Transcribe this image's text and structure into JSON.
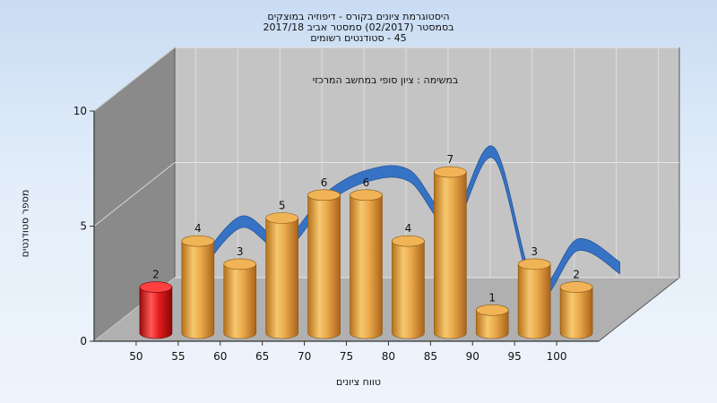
{
  "title_lines": [
    "היסטוגרמת ציונים בקורס - דיפוזיה במוצקים",
    "בסמסטר  (02/2017)  סמסטר אביב 2017/18",
    "45 - סטודנטים רשומים"
  ],
  "chart_data": {
    "type": "bar",
    "title": "היסטוגרמת ציונים בקורס - דיפוזיה במוצקים",
    "subtitle": "במשימה : ציון סופי במחשב המרכזי",
    "xlabel": "טווח ציונים",
    "ylabel": "מספר סטודנטים",
    "categories": [
      "50",
      "55",
      "60",
      "65",
      "70",
      "75",
      "80",
      "85",
      "90",
      "95",
      "100"
    ],
    "values": [
      2,
      4,
      3,
      5,
      6,
      6,
      4,
      7,
      1,
      3,
      2
    ],
    "ylim": [
      0,
      10
    ],
    "yticks": [
      0,
      5,
      10
    ],
    "highlight_index": 0,
    "colors": {
      "bar": "#e8a84a",
      "bar_highlight": "#e01818",
      "ribbon": "#2f6fc4",
      "back_wall": "#c4c4c4",
      "side_wall": "#8a8a8a",
      "floor": "#b0b0b0"
    },
    "grid": true,
    "legend": "none"
  }
}
